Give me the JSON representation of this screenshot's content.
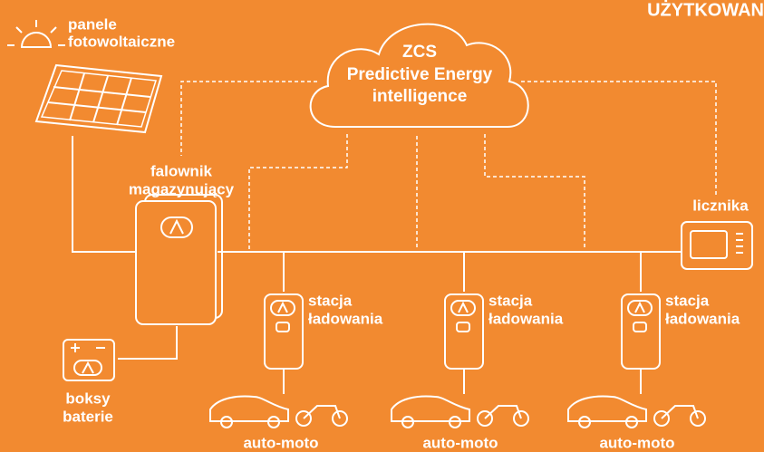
{
  "header": {
    "title": "UŻYTKOWAN"
  },
  "nodes": [
    {
      "label": [
        "panele",
        "fotowoltaiczne"
      ]
    },
    {
      "label": [
        "ZCS",
        "Predictive Energy",
        "intelligence"
      ]
    },
    {
      "label": [
        "falownik",
        "magazynujący"
      ]
    },
    {
      "label": [
        "licznika"
      ]
    },
    {
      "label": [
        "stacja",
        "ładowania"
      ]
    },
    {
      "label": [
        "stacja",
        "ładowania"
      ]
    },
    {
      "label": [
        "stacja",
        "ładowania"
      ]
    },
    {
      "label": [
        "boksy",
        "baterie"
      ]
    },
    {
      "label": [
        "auto-moto"
      ]
    },
    {
      "label": [
        "auto-moto"
      ]
    },
    {
      "label": [
        "auto-moto"
      ]
    }
  ]
}
